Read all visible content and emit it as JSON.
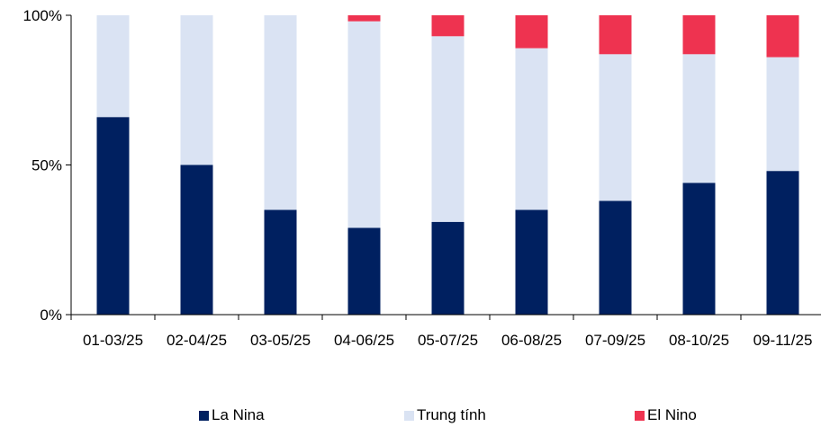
{
  "chart_data": {
    "type": "bar",
    "stacked": true,
    "percent": true,
    "categories": [
      "01-03/25",
      "02-04/25",
      "03-05/25",
      "04-06/25",
      "05-07/25",
      "06-08/25",
      "07-09/25",
      "08-10/25",
      "09-11/25"
    ],
    "series": [
      {
        "name": "La Nina",
        "color": "#002060",
        "values": [
          66,
          50,
          35,
          29,
          31,
          35,
          38,
          44,
          48
        ]
      },
      {
        "name": "Trung tính",
        "color": "#dae3f3",
        "values": [
          34,
          50,
          65,
          69,
          62,
          54,
          49,
          43,
          38
        ]
      },
      {
        "name": "El Nino",
        "color": "#ee3350",
        "values": [
          0,
          0,
          0,
          2,
          7,
          11,
          13,
          13,
          14
        ]
      }
    ],
    "yticks": [
      "0%",
      "50%",
      "100%"
    ],
    "ylim": [
      0,
      100
    ],
    "grid": false,
    "legend_position": "bottom"
  }
}
